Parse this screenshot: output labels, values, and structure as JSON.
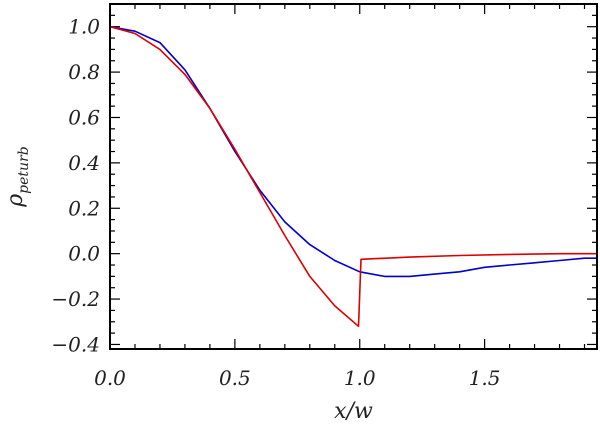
{
  "chart_data": {
    "type": "line",
    "xlabel": "x/w",
    "ylabel": {
      "symbol": "ρ",
      "subscript": "peturb"
    },
    "xlim": [
      0.0,
      1.95
    ],
    "ylim": [
      -0.42,
      1.1
    ],
    "xticks": [
      0.0,
      0.5,
      1.0,
      1.5
    ],
    "xtick_labels": [
      "0.0",
      "0.5",
      "1.0",
      "1.5"
    ],
    "yticks": [
      -0.4,
      -0.2,
      0.0,
      0.2,
      0.4,
      0.6,
      0.8,
      1.0
    ],
    "ytick_labels": [
      "−0.4",
      "−0.2",
      "0.0",
      "0.2",
      "0.4",
      "0.6",
      "0.8",
      "1.0"
    ],
    "grid": false,
    "series": [
      {
        "color": "#0000cc",
        "x": [
          0.0,
          0.1,
          0.2,
          0.3,
          0.4,
          0.5,
          0.6,
          0.7,
          0.8,
          0.9,
          1.0,
          1.1,
          1.2,
          1.3,
          1.4,
          1.5,
          1.6,
          1.7,
          1.8,
          1.9,
          1.95
        ],
        "y": [
          1.0,
          0.98,
          0.93,
          0.81,
          0.64,
          0.45,
          0.28,
          0.14,
          0.04,
          -0.03,
          -0.08,
          -0.1,
          -0.1,
          -0.09,
          -0.08,
          -0.06,
          -0.05,
          -0.04,
          -0.03,
          -0.02,
          -0.02
        ]
      },
      {
        "color": "#dd0000",
        "x": [
          0.0,
          0.1,
          0.2,
          0.3,
          0.4,
          0.5,
          0.6,
          0.7,
          0.8,
          0.9,
          0.995,
          1.005,
          1.2,
          1.4,
          1.6,
          1.8,
          1.95
        ],
        "y": [
          1.0,
          0.97,
          0.9,
          0.79,
          0.64,
          0.46,
          0.27,
          0.08,
          -0.1,
          -0.23,
          -0.32,
          -0.025,
          -0.015,
          -0.008,
          -0.003,
          0.0,
          0.0
        ]
      }
    ]
  }
}
